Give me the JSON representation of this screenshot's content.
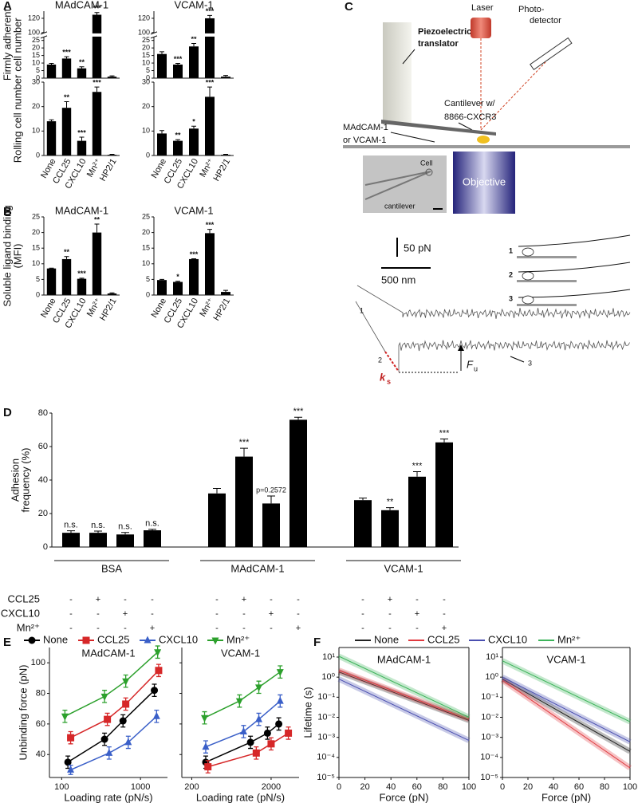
{
  "chart_data": [
    {
      "type": "bar",
      "panel": "A",
      "title": "MAdCAM-1",
      "ylabel": [
        "Firmly adherent",
        "cell number"
      ],
      "values": [
        9,
        13,
        6.5,
        125,
        1
      ],
      "errors": [
        0.8,
        1.2,
        1,
        3,
        0.5
      ],
      "annotations": [
        null,
        "***",
        "**",
        "***",
        null
      ],
      "color": "#000000",
      "ylim": [
        0,
        130
      ],
      "yticks": [
        0,
        5,
        10,
        15,
        20,
        25,
        100,
        120
      ],
      "axis_break": [
        27,
        100
      ]
    },
    {
      "type": "bar",
      "title": "VCAM-1",
      "values": [
        16,
        9,
        21,
        120,
        1
      ],
      "errors": [
        1.5,
        0.8,
        2,
        4,
        0.8
      ],
      "annotations": [
        null,
        "***",
        "**",
        "***",
        null
      ],
      "color": "#000000",
      "ylim": [
        0,
        130
      ],
      "yticks": [
        0,
        5,
        10,
        15,
        20,
        25,
        100,
        120
      ],
      "axis_break": [
        27,
        100
      ]
    },
    {
      "type": "bar",
      "ylabel": "Rolling cell number",
      "categories": [
        "None",
        "CCL25",
        "CXCL10",
        "Mn²⁺",
        "HP2/1"
      ],
      "values": [
        14,
        19.5,
        6,
        26,
        0.3
      ],
      "errors": [
        0.6,
        2.5,
        1.5,
        2,
        0.2
      ],
      "annotations": [
        null,
        "**",
        "***",
        "***",
        null
      ],
      "color": "#000000",
      "ylim": [
        0,
        30
      ],
      "yticks": [
        0,
        10,
        20,
        30
      ]
    },
    {
      "type": "bar",
      "categories": [
        "None",
        "CCL25",
        "CXCL10",
        "Mn²⁺",
        "HP2/1"
      ],
      "values": [
        9,
        6,
        11,
        24,
        0.3
      ],
      "errors": [
        1.2,
        0.5,
        1,
        4,
        0.2
      ],
      "annotations": [
        null,
        "**",
        "*",
        "***",
        null
      ],
      "color": "#000000",
      "ylim": [
        0,
        30
      ],
      "yticks": [
        0,
        10,
        20,
        30
      ]
    },
    {
      "type": "bar",
      "panel": "B",
      "title": "MAdCAM-1",
      "ylabel": [
        "Soluble ligand binding",
        "(MFI)"
      ],
      "categories": [
        "None",
        "CCL25",
        "CXCL10",
        "Mn²⁺",
        "HP2/1"
      ],
      "values": [
        8.5,
        11.5,
        5.2,
        20,
        0.5
      ],
      "errors": [
        0.1,
        0.8,
        0.2,
        2.7,
        0.2
      ],
      "annotations": [
        null,
        "**",
        "***",
        "**",
        null
      ],
      "color": "#000000",
      "ylim": [
        0,
        25
      ],
      "yticks": [
        0,
        5,
        10,
        15,
        20,
        25
      ]
    },
    {
      "type": "bar",
      "title": "VCAM-1",
      "categories": [
        "None",
        "CCL25",
        "CXCL10",
        "Mn²⁺",
        "HP2/1"
      ],
      "values": [
        4.8,
        4.2,
        11.5,
        19.8,
        1
      ],
      "errors": [
        0.2,
        0.2,
        0.1,
        1.2,
        0.5
      ],
      "annotations": [
        null,
        "*",
        "***",
        "***",
        null
      ],
      "color": "#000000",
      "ylim": [
        0,
        25
      ],
      "yticks": [
        0,
        5,
        10,
        15,
        20,
        25
      ]
    },
    {
      "type": "grouped_bar",
      "panel": "D",
      "ylabel": [
        "Adhesion",
        "frequency (%)"
      ],
      "groups": [
        "BSA",
        "MAdCAM-1",
        "VCAM-1"
      ],
      "conditions": [
        {
          "name": "CCL25",
          "signs": [
            "-",
            "+",
            "-",
            "-",
            "-",
            "+",
            "-",
            "-",
            "-",
            "+",
            "-",
            "-"
          ]
        },
        {
          "name": "CXCL10",
          "signs": [
            "-",
            "-",
            "+",
            "-",
            "-",
            "-",
            "+",
            "-",
            "-",
            "-",
            "+",
            "-"
          ]
        },
        {
          "name": "Mn²⁺",
          "signs": [
            "-",
            "-",
            "-",
            "+",
            "-",
            "-",
            "-",
            "+",
            "-",
            "-",
            "-",
            "+"
          ]
        }
      ],
      "values": [
        8.5,
        8.5,
        7.5,
        10,
        32,
        54,
        26,
        76,
        28,
        22,
        42,
        62.5
      ],
      "errors": [
        1.2,
        1,
        1.2,
        0.6,
        3,
        5,
        4.5,
        1.5,
        1.2,
        1.5,
        3,
        2
      ],
      "annotations": [
        "n.s.",
        "n.s.",
        "n.s.",
        "n.s.",
        null,
        "***",
        "p=0.2572",
        "***",
        null,
        "**",
        "***",
        "***"
      ],
      "color": "#000000",
      "ylim": [
        0,
        80
      ],
      "yticks": [
        0,
        20,
        40,
        60,
        80
      ]
    },
    {
      "type": "line",
      "panel": "E",
      "ylabel": "Unbinding force (pN)",
      "xscale": "log",
      "ylim": [
        25,
        110
      ],
      "yticks": [
        40,
        60,
        80,
        100
      ],
      "series": [
        {
          "name": "None",
          "color": "#000000",
          "marker": "circle"
        },
        {
          "name": "CCL25",
          "color": "#d62728",
          "marker": "square"
        },
        {
          "name": "CXCL10",
          "color": "#3a5fc8",
          "marker": "triangle-up"
        },
        {
          "name": "Mn²⁺",
          "color": "#2ca02c",
          "marker": "triangle-down"
        }
      ],
      "subplots": [
        {
          "title": "MAdCAM-1",
          "xlabel": "Loading rate (pN/s)",
          "xlim": [
            70,
            2200
          ],
          "xticks": [
            100,
            1000
          ],
          "data": [
            {
              "x": [
                120,
                350,
                600,
                1500
              ],
              "values": [
                35,
                50,
                62,
                82
              ],
              "errors": [
                4,
                4,
                4,
                4
              ]
            },
            {
              "x": [
                130,
                380,
                650,
                1700
              ],
              "values": [
                51,
                63,
                73,
                95
              ],
              "errors": [
                4,
                4,
                4,
                4
              ]
            },
            {
              "x": [
                130,
                400,
                700,
                1600
              ],
              "values": [
                30,
                41,
                48,
                65
              ],
              "errors": [
                3,
                4,
                4,
                4
              ]
            },
            {
              "x": [
                110,
                350,
                650,
                1650
              ],
              "values": [
                65,
                78,
                88,
                107
              ],
              "errors": [
                4,
                4,
                4,
                4
              ]
            }
          ]
        },
        {
          "title": "VCAM-1",
          "xlabel": "Loading rate (pN/s)",
          "xlim": [
            150,
            4500
          ],
          "xticks": [
            200,
            2000
          ],
          "data": [
            {
              "x": [
                300,
                1100,
                1800,
                2500
              ],
              "values": [
                35,
                48,
                54,
                60
              ],
              "errors": [
                4,
                4,
                4,
                4
              ]
            },
            {
              "x": [
                320,
                1300,
                2000,
                3300
              ],
              "values": [
                32,
                41,
                47,
                54
              ],
              "errors": [
                4,
                4,
                4,
                4
              ]
            },
            {
              "x": [
                300,
                900,
                1400,
                2600
              ],
              "values": [
                45,
                55,
                63,
                75
              ],
              "errors": [
                4,
                4,
                4,
                4
              ]
            },
            {
              "x": [
                290,
                800,
                1400,
                2600
              ],
              "values": [
                64,
                75,
                84,
                94
              ],
              "errors": [
                4,
                4,
                4,
                4
              ]
            }
          ]
        }
      ]
    },
    {
      "type": "line",
      "panel": "F",
      "ylabel": "Lifetime (s)",
      "yscale": "log",
      "ylim": [
        1e-05,
        30
      ],
      "yticks": [
        {
          "value": 10,
          "label": "10¹"
        },
        {
          "value": 1,
          "label": "10⁰"
        },
        {
          "value": 0.1,
          "label": "10⁻¹"
        },
        {
          "value": 0.01,
          "label": "10⁻²"
        },
        {
          "value": 0.001,
          "label": "10⁻³"
        },
        {
          "value": 0.0001,
          "label": "10⁻⁴"
        },
        {
          "value": 1e-05,
          "label": "10⁻⁵"
        }
      ],
      "series": [
        {
          "name": "None",
          "color": "#222222"
        },
        {
          "name": "CCL25",
          "color": "#e0393e"
        },
        {
          "name": "CXCL10",
          "color": "#4a4fb0"
        },
        {
          "name": "Mn²⁺",
          "color": "#3cb45a"
        }
      ],
      "subplots": [
        {
          "title": "MAdCAM-1",
          "xlabel": "Force (pN)",
          "xlim": [
            0,
            100
          ],
          "xticks": [
            0,
            20,
            40,
            60,
            80,
            100
          ],
          "data": [
            {
              "x": [
                0,
                100
              ],
              "values": [
                1.8,
                0.007
              ]
            },
            {
              "x": [
                0,
                100
              ],
              "values": [
                2.2,
                0.008
              ]
            },
            {
              "x": [
                0,
                100
              ],
              "values": [
                0.8,
                0.0007
              ]
            },
            {
              "x": [
                0,
                100
              ],
              "values": [
                11,
                0.01
              ]
            }
          ]
        },
        {
          "title": "VCAM-1",
          "xlabel": "Force (pN)",
          "xlim": [
            0,
            100
          ],
          "xticks": [
            0,
            20,
            40,
            60,
            80,
            100
          ],
          "data": [
            {
              "x": [
                0,
                100
              ],
              "values": [
                0.8,
                0.0002
              ]
            },
            {
              "x": [
                0,
                100
              ],
              "values": [
                0.7,
                3e-05
              ]
            },
            {
              "x": [
                0,
                100
              ],
              "values": [
                1,
                0.0006
              ]
            },
            {
              "x": [
                0,
                100
              ],
              "values": [
                6.5,
                0.006
              ]
            }
          ]
        }
      ]
    }
  ],
  "diagram": {
    "panel": "C",
    "piezo": [
      "Piezoelectric",
      "translator"
    ],
    "laser": "Laser",
    "detector": [
      "Photo-",
      "detector"
    ],
    "cantilever": [
      "Cantilever w/",
      "8866-CXCR3"
    ],
    "substrate": [
      "MAdCAM-1",
      "or VCAM-1"
    ],
    "cell": "Cell",
    "inset_cantilever": "cantilever",
    "objective": "Objective",
    "scale_force": "50 pN",
    "scale_distance": "500 nm",
    "trace_labels": [
      "1",
      "2",
      "3"
    ],
    "icon_labels": [
      "1",
      "2",
      "3"
    ],
    "ks": "k",
    "ks_sub": "s",
    "fu": "F",
    "fu_sub": "u"
  }
}
